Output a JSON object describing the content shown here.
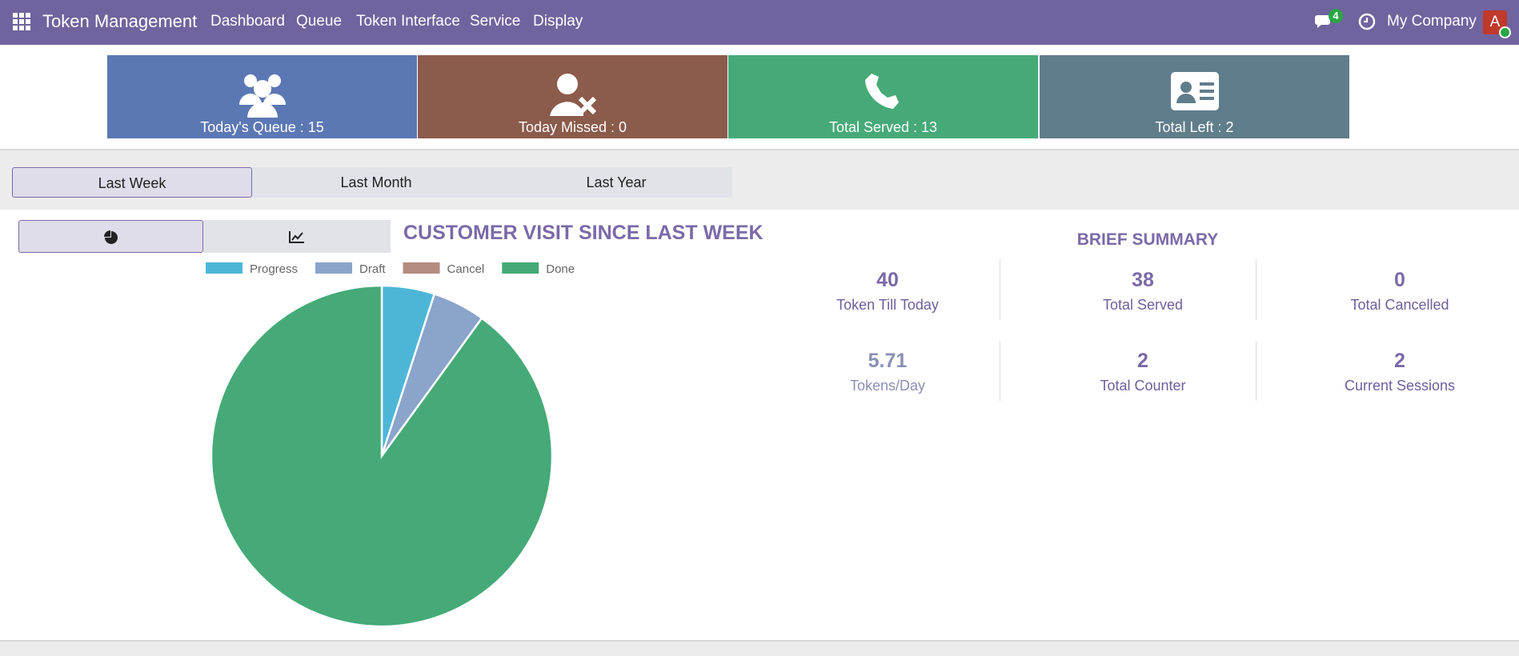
{
  "navbar": {
    "app_title": "Token Management",
    "menu": [
      "Dashboard",
      "Queue",
      "Token Interface",
      "Service",
      "Display"
    ],
    "message_count": 4,
    "company": "My Company",
    "avatar": "A"
  },
  "stat_cards": [
    {
      "label": "Today's Queue : 15",
      "color": "#5b78b4"
    },
    {
      "label": "Today Missed : 0",
      "color": "#8b5b4b"
    },
    {
      "label": "Total Served : 13",
      "color": "#46aa78"
    },
    {
      "label": "Total Left : 2",
      "color": "#607d8b"
    }
  ],
  "period_tabs": {
    "items": [
      "Last Week",
      "Last Month",
      "Last Year"
    ],
    "active": 0
  },
  "chart_data": {
    "type": "pie",
    "title": "CUSTOMER VISIT SINCE LAST WEEK",
    "categories": [
      "Progress",
      "Draft",
      "Cancel",
      "Done"
    ],
    "values": [
      2,
      2,
      0,
      36
    ],
    "colors": [
      "#4db6d8",
      "#8aa4cb",
      "#b48c80",
      "#45aa77"
    ],
    "legend": "top"
  },
  "summary": {
    "title": "BRIEF SUMMARY",
    "items": [
      {
        "value": 40,
        "label": "Token Till Today"
      },
      {
        "value": 38,
        "label": "Total Served"
      },
      {
        "value": 0,
        "label": "Total Cancelled"
      },
      {
        "value": 5.71,
        "label": "Tokens/Day"
      },
      {
        "value": 2,
        "label": "Total Counter"
      },
      {
        "value": 2,
        "label": "Current Sessions"
      }
    ]
  }
}
